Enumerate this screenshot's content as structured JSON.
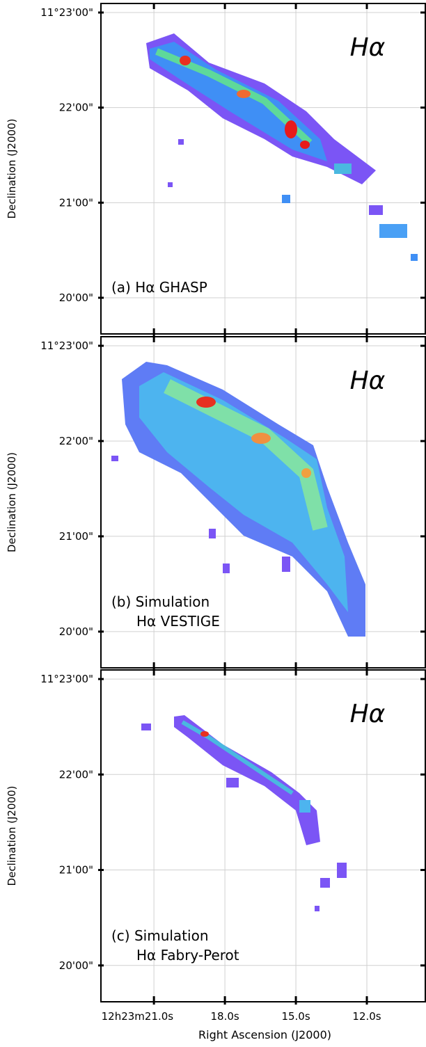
{
  "chart_data": [
    {
      "type": "image",
      "ylabel": "Declination (J2000)",
      "title": "Hα",
      "annotation": [
        "(a) Hα GHASP"
      ],
      "xlim": [
        23.24,
        9.5
      ],
      "ylim": [
        11.32699,
        11.38492
      ],
      "xticks": [
        21,
        18,
        15,
        12
      ],
      "yticks": [
        {
          "value": 11.383333,
          "label": "11°23'00\""
        },
        {
          "value": 11.366667,
          "label": "22'00\""
        },
        {
          "value": 11.35,
          "label": "21'00\""
        },
        {
          "value": 11.333333,
          "label": "20'00\""
        }
      ],
      "grid": true
    },
    {
      "type": "image",
      "ylabel": "Declination (J2000)",
      "title": "Hα",
      "annotation": [
        "(b) Simulation",
        "Hα VESTIGE"
      ],
      "xlim": [
        23.24,
        9.5
      ],
      "ylim": [
        11.32699,
        11.38492
      ],
      "xticks": [
        21,
        18,
        15,
        12
      ],
      "yticks": [
        {
          "value": 11.383333,
          "label": "11°23'00\""
        },
        {
          "value": 11.366667,
          "label": "22'00\""
        },
        {
          "value": 11.35,
          "label": "21'00\""
        },
        {
          "value": 11.333333,
          "label": "20'00\""
        }
      ],
      "grid": true
    },
    {
      "type": "image",
      "ylabel": "Declination (J2000)",
      "xlabel": "Right Ascension (J2000)",
      "title": "Hα",
      "annotation": [
        "(c) Simulation",
        "Hα Fabry-Perot"
      ],
      "xlim": [
        23.24,
        9.5
      ],
      "ylim": [
        11.32699,
        11.38492
      ],
      "xticks": [
        {
          "value": 21,
          "label": "12h23m21.0s"
        },
        {
          "value": 18,
          "label": "18.0s"
        },
        {
          "value": 15,
          "label": "15.0s"
        },
        {
          "value": 12,
          "label": "12.0s"
        }
      ],
      "yticks": [
        {
          "value": 11.383333,
          "label": "11°23'00\""
        },
        {
          "value": 11.366667,
          "label": "22'00\""
        },
        {
          "value": 11.35,
          "label": "21'00\""
        },
        {
          "value": 11.333333,
          "label": "20'00\""
        }
      ],
      "grid": true
    }
  ]
}
